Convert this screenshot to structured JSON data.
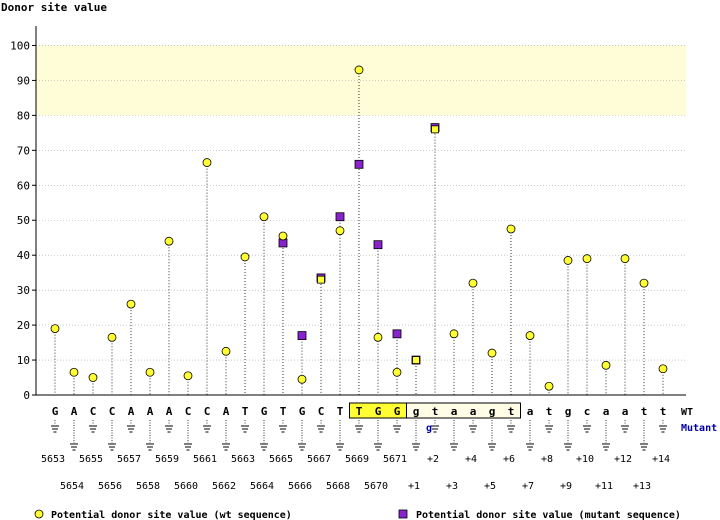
{
  "chart_data": {
    "type": "scatter",
    "title": "Donor site value",
    "ylim": [
      0,
      105
    ],
    "yticks": [
      0,
      10,
      20,
      30,
      40,
      50,
      60,
      70,
      80,
      90,
      100
    ],
    "highlight_band": {
      "y_from": 80,
      "y_to": 100,
      "color": "#fffdd8"
    },
    "positions": [
      {
        "base": "G",
        "label": "5653"
      },
      {
        "base": "A",
        "label": "5654"
      },
      {
        "base": "C",
        "label": "5655"
      },
      {
        "base": "C",
        "label": "5656"
      },
      {
        "base": "A",
        "label": "5657"
      },
      {
        "base": "A",
        "label": "5658"
      },
      {
        "base": "A",
        "label": "5659"
      },
      {
        "base": "C",
        "label": "5660"
      },
      {
        "base": "C",
        "label": "5661"
      },
      {
        "base": "A",
        "label": "5662"
      },
      {
        "base": "T",
        "label": "5663"
      },
      {
        "base": "G",
        "label": "5664"
      },
      {
        "base": "T",
        "label": "5665"
      },
      {
        "base": "G",
        "label": "5666"
      },
      {
        "base": "C",
        "label": "5667"
      },
      {
        "base": "T",
        "label": "5668"
      },
      {
        "base": "T",
        "label": "5669"
      },
      {
        "base": "G",
        "label": "5670"
      },
      {
        "base": "G",
        "label": "5671"
      },
      {
        "base": "g",
        "label": "+1",
        "mutant": "g"
      },
      {
        "base": "t",
        "label": "+2"
      },
      {
        "base": "a",
        "label": "+3"
      },
      {
        "base": "a",
        "label": "+4"
      },
      {
        "base": "g",
        "label": "+5"
      },
      {
        "base": "t",
        "label": "+6"
      },
      {
        "base": "a",
        "label": "+7"
      },
      {
        "base": "t",
        "label": "+8"
      },
      {
        "base": "g",
        "label": "+9"
      },
      {
        "base": "c",
        "label": "+10"
      },
      {
        "base": "a",
        "label": "+11"
      },
      {
        "base": "a",
        "label": "+12"
      },
      {
        "base": "t",
        "label": "+13"
      },
      {
        "base": "t",
        "label": "+14"
      }
    ],
    "series": [
      {
        "name": "Potential donor site value (wt sequence)",
        "marker": "circle",
        "color": "#ffff33",
        "values": [
          19,
          6.5,
          5,
          16.5,
          26,
          6.5,
          44,
          5.5,
          66.5,
          12.5,
          39.5,
          51,
          45.5,
          4.5,
          33,
          47,
          93,
          16.5,
          6.5,
          10,
          76,
          17.5,
          32,
          12,
          47.5,
          17,
          2.5,
          38.5,
          39,
          8.5,
          39,
          32,
          7.5
        ]
      },
      {
        "name": "Potential donor site value (mutant sequence)",
        "marker": "square",
        "color": "#8822cc",
        "values": [
          null,
          null,
          null,
          null,
          null,
          null,
          null,
          null,
          null,
          null,
          null,
          null,
          43.5,
          17,
          33.5,
          51,
          66,
          43,
          17.5,
          10,
          76.5,
          null,
          null,
          null,
          null,
          null,
          null,
          null,
          null,
          null,
          null,
          null,
          null
        ]
      }
    ],
    "row_labels": {
      "wt": "WT",
      "mutant": "Mutant"
    },
    "boxes": [
      {
        "from_index": 16,
        "to_index": 18,
        "fill": "#ffff33"
      },
      {
        "from_index": 19,
        "to_index": 24,
        "fill": "#fffde6"
      }
    ]
  }
}
